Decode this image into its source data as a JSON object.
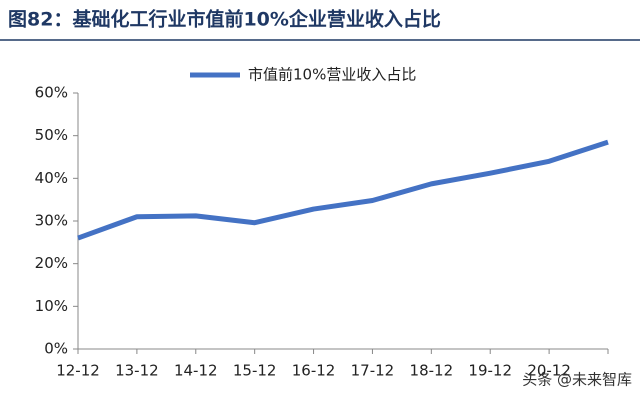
{
  "chart_data": {
    "type": "line",
    "title": "图82：基础化工行业市值前10%企业营业收入占比",
    "categories": [
      "12-12",
      "13-12",
      "14-12",
      "15-12",
      "16-12",
      "17-12",
      "18-12",
      "19-12",
      "20-12",
      null
    ],
    "series": [
      {
        "name": "市值前10%营业收入占比",
        "color": "#4472c4",
        "values": [
          26,
          31,
          31.2,
          29.6,
          32.8,
          34.8,
          38.7,
          41.2,
          44,
          48.5
        ]
      }
    ],
    "ylim": [
      0,
      60
    ],
    "yticks": [
      {
        "value": 0,
        "label": "0%"
      },
      {
        "value": 10,
        "label": "10%"
      },
      {
        "value": 20,
        "label": "20%"
      },
      {
        "value": 30,
        "label": "30%"
      },
      {
        "value": 40,
        "label": "40%"
      },
      {
        "value": 50,
        "label": "50%"
      },
      {
        "value": 60,
        "label": "60%"
      }
    ],
    "legend": "top",
    "watermark": "头条 @未来智库"
  }
}
